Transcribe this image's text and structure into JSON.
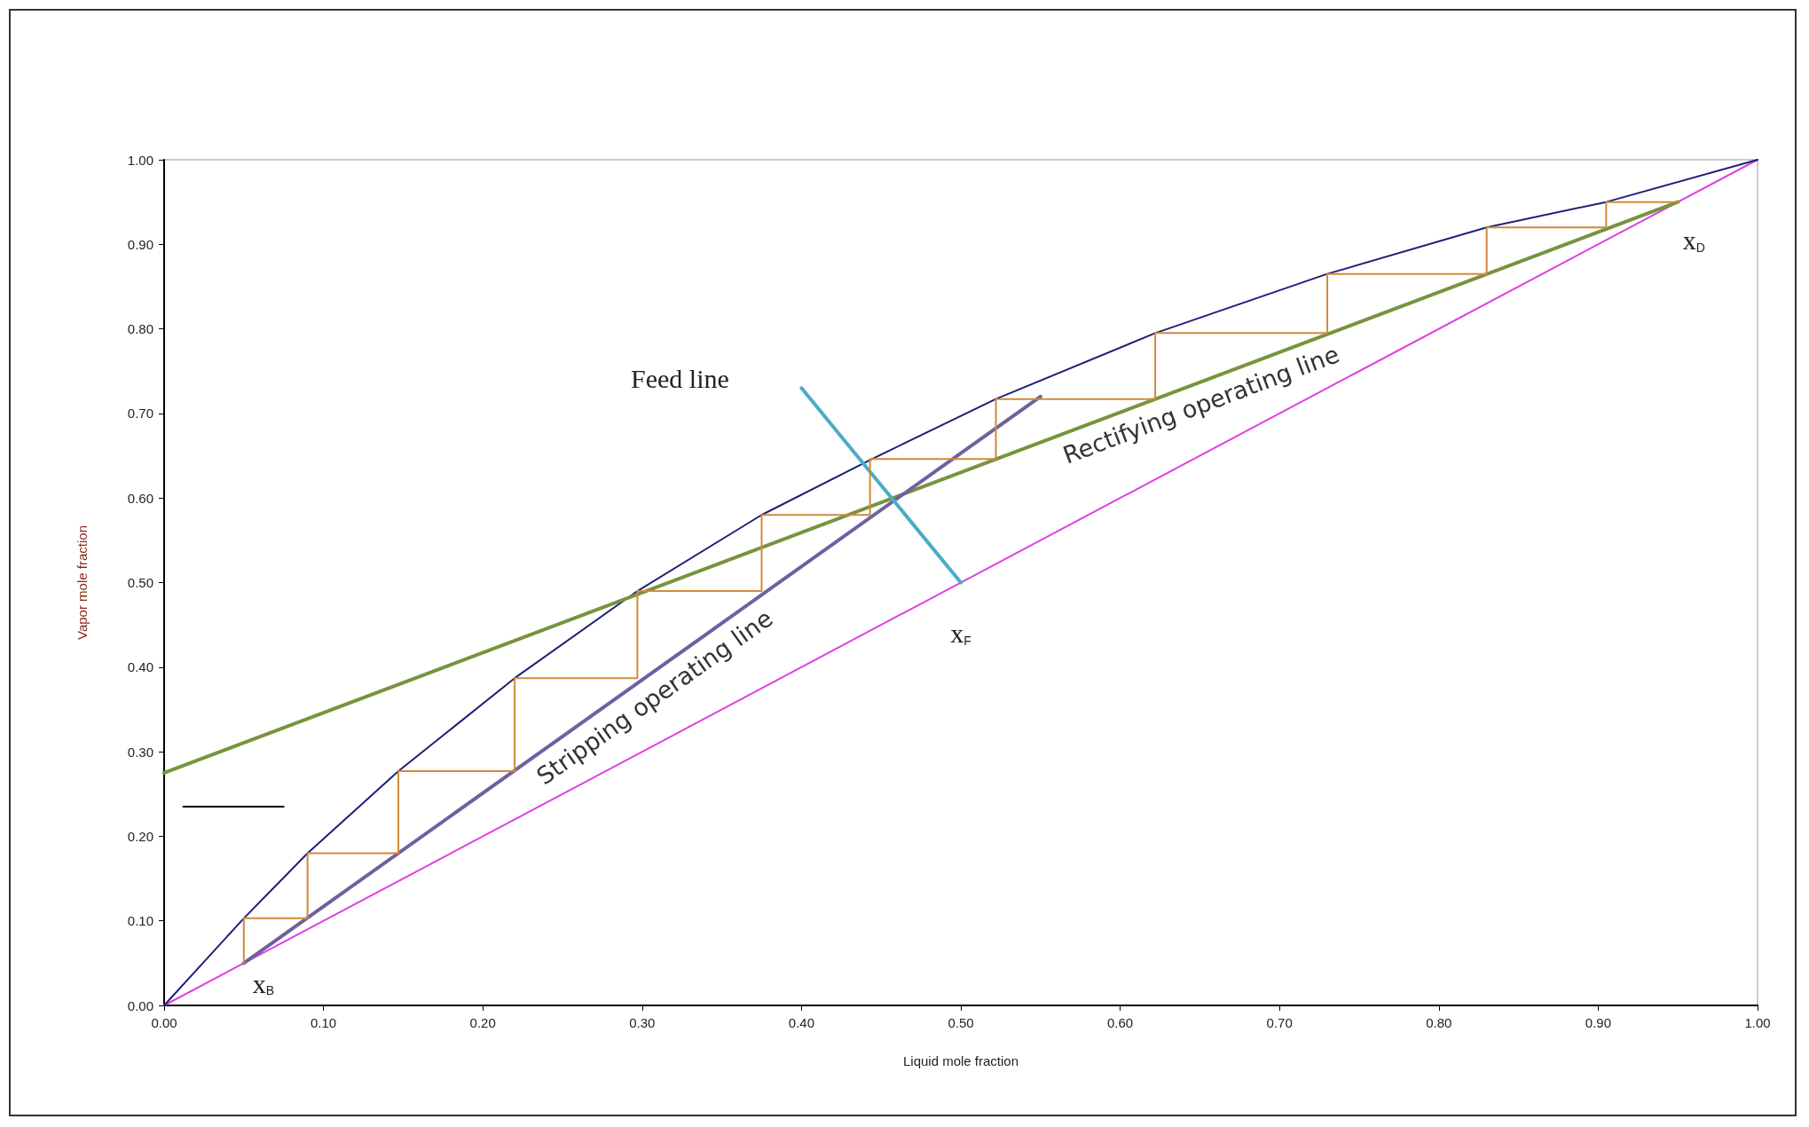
{
  "chart_data": {
    "type": "line",
    "xlabel": "Liquid mole fraction",
    "ylabel": "Vapor mole fraction",
    "xlim": [
      0,
      1
    ],
    "ylim": [
      0,
      1
    ],
    "xticks": [
      {
        "value": 0,
        "label": "0.00"
      },
      {
        "value": 0.1,
        "label": "0.10"
      },
      {
        "value": 0.2,
        "label": "0.20"
      },
      {
        "value": 0.3,
        "label": "0.30"
      },
      {
        "value": 0.4,
        "label": "0.40"
      },
      {
        "value": 0.5,
        "label": "0.50"
      },
      {
        "value": 0.6,
        "label": "0.60"
      },
      {
        "value": 0.7,
        "label": "0.70"
      },
      {
        "value": 0.8,
        "label": "0.80"
      },
      {
        "value": 0.9,
        "label": "0.90"
      },
      {
        "value": 1,
        "label": "1.00"
      }
    ],
    "yticks": [
      {
        "value": 0,
        "label": "0.00"
      },
      {
        "value": 0.1,
        "label": "0.10"
      },
      {
        "value": 0.2,
        "label": "0.20"
      },
      {
        "value": 0.3,
        "label": "0.30"
      },
      {
        "value": 0.4,
        "label": "0.40"
      },
      {
        "value": 0.5,
        "label": "0.50"
      },
      {
        "value": 0.6,
        "label": "0.60"
      },
      {
        "value": 0.7,
        "label": "0.70"
      },
      {
        "value": 0.8,
        "label": "0.80"
      },
      {
        "value": 0.9,
        "label": "0.90"
      },
      {
        "value": 1,
        "label": "1.00"
      }
    ],
    "grid": false,
    "legend": false,
    "marker": "none",
    "line_style": "solid",
    "series": [
      {
        "color": "#e040e0",
        "x": [
          0,
          1
        ],
        "values": [
          0,
          1
        ]
      },
      {
        "color": "#1f1f7a",
        "x": [
          0,
          0.05,
          0.09,
          0.147,
          0.22,
          0.297,
          0.375,
          0.443,
          0.522,
          0.622,
          0.73,
          0.83,
          0.905,
          1
        ],
        "values": [
          0,
          0.103,
          0.18,
          0.277,
          0.387,
          0.49,
          0.58,
          0.645,
          0.717,
          0.795,
          0.865,
          0.92,
          0.95,
          1
        ]
      },
      {
        "name": "Rectifying operating line",
        "color": "#77933c",
        "x": [
          0,
          0.95
        ],
        "values": [
          0.275,
          0.95
        ]
      },
      {
        "name": "Stripping operating line",
        "color": "#7060a0",
        "x": [
          0.05,
          0.55
        ],
        "values": [
          0.05,
          0.72
        ]
      },
      {
        "color": "#4bacc6",
        "x": [
          0.4,
          0.5
        ],
        "values": [
          0.73,
          0.5
        ]
      },
      {
        "color": "#d08a3a",
        "x": [
          0.95,
          0.905,
          0.905,
          0.83,
          0.83,
          0.73,
          0.73,
          0.622,
          0.622,
          0.55,
          0.522,
          0.522,
          0.443,
          0.443,
          0.375,
          0.375,
          0.297,
          0.297,
          0.22,
          0.22,
          0.147,
          0.147,
          0.09,
          0.09,
          0.05,
          0.05
        ],
        "values": [
          0.95,
          0.95,
          0.92,
          0.92,
          0.865,
          0.865,
          0.795,
          0.795,
          0.717,
          0.717,
          0.717,
          0.646,
          0.646,
          0.58,
          0.58,
          0.49,
          0.49,
          0.387,
          0.387,
          0.277,
          0.277,
          0.18,
          0.18,
          0.103,
          0.103,
          0.05
        ]
      },
      {
        "color": "#000000",
        "x": [
          0.012,
          0.075
        ],
        "values": [
          0.235,
          0.235
        ]
      }
    ],
    "annotations": [
      {
        "text": "Feed line",
        "x": 0.4,
        "y": 0.73
      },
      {
        "text": "x$_{F}$",
        "x": 0.5,
        "y": 0.5
      },
      {
        "text": "x$_{D}$",
        "x": 0.95,
        "y": 0.95
      },
      {
        "text": "x$_{B}$",
        "x": 0.05,
        "y": 0.05
      }
    ]
  }
}
